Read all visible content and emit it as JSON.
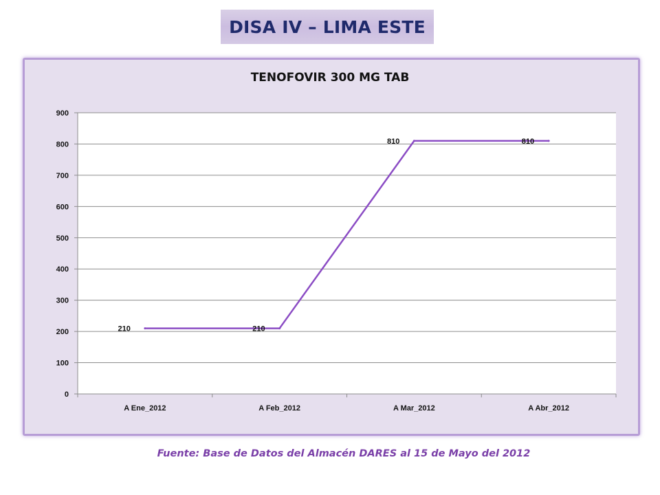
{
  "header": {
    "title": "DISA IV – LIMA ESTE"
  },
  "source_note": "Fuente: Base de Datos del Almacén DARES al 15 de Mayo del 2012",
  "colors": {
    "line": "#8b4cc4",
    "frame_border": "#b79dd6",
    "frame_bg": "#e6dfee",
    "header_text": "#1f2a6b",
    "source_text": "#7a3fa8"
  },
  "chart_data": {
    "type": "line",
    "title": "TENOFOVIR 300 MG TAB",
    "categories": [
      "A Ene_2012",
      "A Feb_2012",
      "A Mar_2012",
      "A Abr_2012"
    ],
    "series": [
      {
        "values": [
          210,
          210,
          810,
          810
        ],
        "data_labels": [
          "210",
          "210",
          "810",
          "810"
        ]
      }
    ],
    "yticks": [
      "0",
      "100",
      "200",
      "300",
      "400",
      "500",
      "600",
      "700",
      "800",
      "900"
    ],
    "ylim": [
      0,
      900
    ],
    "grid": true,
    "legend": "none"
  }
}
